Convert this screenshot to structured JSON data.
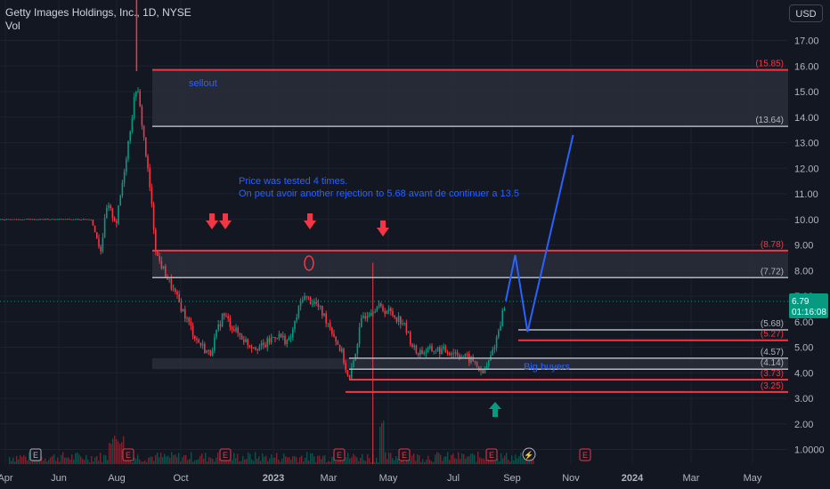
{
  "header": {
    "title": "Getty Images Holdings, Inc., 1D, NYSE",
    "subtitle": "Vol"
  },
  "currency_button": "USD",
  "colors": {
    "background": "#131722",
    "grid": "#1e222d",
    "text": "#b2b5be",
    "up": "#089981",
    "down": "#f23645",
    "level_red": "#f23645",
    "level_gray": "#b2b5be",
    "projection": "#2962ff",
    "annotation": "#2962ff"
  },
  "chart_data": {
    "type": "candlestick",
    "title": "Getty Images Holdings, Inc., 1D, NYSE",
    "y_ticks": [
      "17.00",
      "16.00",
      "15.00",
      "14.00",
      "13.00",
      "12.00",
      "11.00",
      "10.00",
      "9.00",
      "8.00",
      "7.00",
      "6.00",
      "5.00",
      "4.00",
      "3.00",
      "2.00",
      "1.0000"
    ],
    "y_tick_values": [
      17,
      16,
      15,
      14,
      13,
      12,
      11,
      10,
      9,
      8,
      7,
      6,
      5,
      4,
      3,
      2,
      1
    ],
    "x_ticks": [
      "Apr",
      "Jun",
      "Aug",
      "Oct",
      "2023",
      "Mar",
      "May",
      "Jul",
      "Sep",
      "Nov",
      "2024",
      "Mar",
      "May"
    ],
    "last_price": {
      "value": "6.79",
      "countdown": "01:16:08"
    },
    "levels": [
      {
        "value": 15.85,
        "label": "(15.85)",
        "color": "red"
      },
      {
        "value": 13.64,
        "label": "(13.64)",
        "color": "gray"
      },
      {
        "value": 8.78,
        "label": "(8.78)",
        "color": "red"
      },
      {
        "value": 7.72,
        "label": "(7.72)",
        "color": "gray"
      },
      {
        "value": 5.68,
        "label": "(5.68)",
        "color": "gray"
      },
      {
        "value": 5.27,
        "label": "(5.27)",
        "color": "red"
      },
      {
        "value": 4.57,
        "label": "(4.57)",
        "color": "gray"
      },
      {
        "value": 4.14,
        "label": "(4.14)",
        "color": "gray"
      },
      {
        "value": 3.73,
        "label": "(3.73)",
        "color": "red"
      },
      {
        "value": 3.25,
        "label": "(3.25)",
        "color": "red"
      }
    ],
    "zones": [
      {
        "from": 13.64,
        "to": 15.85
      },
      {
        "from": 7.72,
        "to": 8.78
      },
      {
        "from": 4.14,
        "to": 4.57
      }
    ],
    "price_path": [
      {
        "date": "2022-04-01",
        "price": 10.0
      },
      {
        "date": "2022-07-05",
        "price": 10.0
      },
      {
        "date": "2022-07-15",
        "price": 8.8
      },
      {
        "date": "2022-07-22",
        "price": 10.5
      },
      {
        "date": "2022-08-01",
        "price": 9.9
      },
      {
        "date": "2022-08-22",
        "price": 15.3
      },
      {
        "date": "2022-08-29",
        "price": 13.4
      },
      {
        "date": "2022-09-05",
        "price": 11.2
      },
      {
        "date": "2022-09-12",
        "price": 8.6
      },
      {
        "date": "2022-09-26",
        "price": 7.5
      },
      {
        "date": "2022-10-10",
        "price": 6.4
      },
      {
        "date": "2022-10-24",
        "price": 5.3
      },
      {
        "date": "2022-11-07",
        "price": 4.7
      },
      {
        "date": "2022-11-21",
        "price": 6.3
      },
      {
        "date": "2022-12-05",
        "price": 5.6
      },
      {
        "date": "2022-12-19",
        "price": 5.1
      },
      {
        "date": "2023-01-02",
        "price": 5.0
      },
      {
        "date": "2023-01-16",
        "price": 5.5
      },
      {
        "date": "2023-01-30",
        "price": 5.2
      },
      {
        "date": "2023-02-13",
        "price": 7.0
      },
      {
        "date": "2023-02-27",
        "price": 6.7
      },
      {
        "date": "2023-03-13",
        "price": 5.9
      },
      {
        "date": "2023-03-27",
        "price": 4.7
      },
      {
        "date": "2023-04-03",
        "price": 3.6
      },
      {
        "date": "2023-04-17",
        "price": 6.2
      },
      {
        "date": "2023-05-01",
        "price": 6.6
      },
      {
        "date": "2023-05-15",
        "price": 6.4
      },
      {
        "date": "2023-05-29",
        "price": 6.0
      },
      {
        "date": "2023-06-12",
        "price": 4.8
      },
      {
        "date": "2023-07-03",
        "price": 4.9
      },
      {
        "date": "2023-07-24",
        "price": 4.8
      },
      {
        "date": "2023-08-14",
        "price": 4.4
      },
      {
        "date": "2023-08-21",
        "price": 3.9
      },
      {
        "date": "2023-08-28",
        "price": 4.4
      },
      {
        "date": "2023-09-05",
        "price": 5.3
      },
      {
        "date": "2023-09-12",
        "price": 6.4
      },
      {
        "date": "2023-09-15",
        "price": 6.79
      }
    ],
    "projection": [
      {
        "date": "2023-09-15",
        "price": 6.8
      },
      {
        "date": "2023-09-25",
        "price": 8.6
      },
      {
        "date": "2023-10-08",
        "price": 5.6
      },
      {
        "date": "2023-11-25",
        "price": 13.3
      }
    ],
    "annotations": [
      {
        "text": "sellout"
      },
      {
        "text": "Price was tested 4 times."
      },
      {
        "text": "On peut avoir another rejection to 5.68 avant de continuer a 13.5"
      },
      {
        "text": "Big buyers"
      }
    ]
  }
}
